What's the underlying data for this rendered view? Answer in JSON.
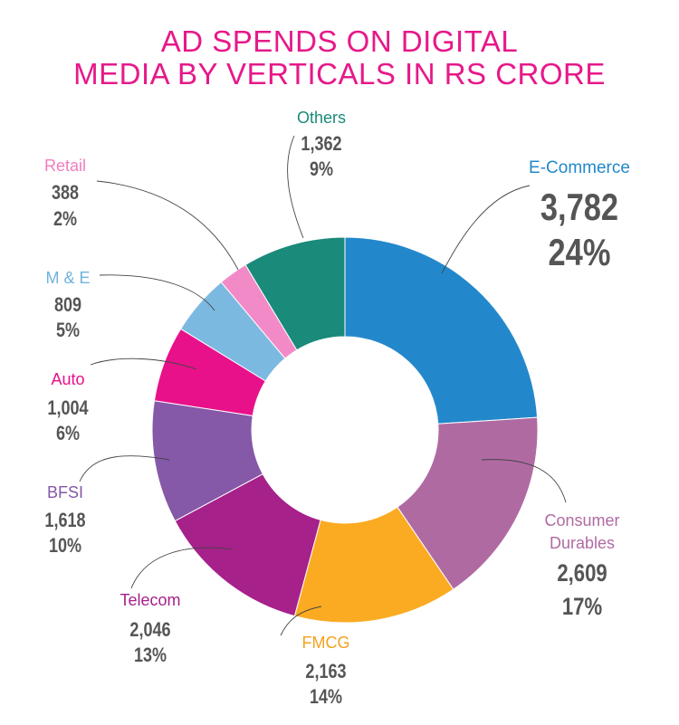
{
  "chart_data": {
    "type": "pie",
    "title_lines": [
      "AD SPENDS ON DIGITAL",
      "MEDIA BY VERTICALS IN RS CRORE"
    ],
    "donut": true,
    "start_angle_deg": 0,
    "direction": "clockwise",
    "segments": [
      {
        "name": "E-Commerce",
        "value": 3782,
        "value_text": "3,782",
        "pct": 24,
        "pct_text": "24%",
        "color": "#2388cb",
        "label_color": "#2388cb"
      },
      {
        "name": "Consumer Durables",
        "name_lines": [
          "Consumer",
          "Durables"
        ],
        "value": 2609,
        "value_text": "2,609",
        "pct": 17,
        "pct_text": "17%",
        "color": "#b06aa2",
        "label_color": "#b06aa2"
      },
      {
        "name": "FMCG",
        "value": 2163,
        "value_text": "2,163",
        "pct": 14,
        "pct_text": "14%",
        "color": "#fbab22",
        "label_color": "#f4a21d"
      },
      {
        "name": "Telecom",
        "value": 2046,
        "value_text": "2,046",
        "pct": 13,
        "pct_text": "13%",
        "color": "#a6218a",
        "label_color": "#a6218a"
      },
      {
        "name": "BFSI",
        "value": 1618,
        "value_text": "1,618",
        "pct": 10,
        "pct_text": "10%",
        "color": "#8558a8",
        "label_color": "#8558a8"
      },
      {
        "name": "Auto",
        "value": 1004,
        "value_text": "1,004",
        "pct": 6,
        "pct_text": "6%",
        "color": "#e8118a",
        "label_color": "#e8118a"
      },
      {
        "name": "M & E",
        "value": 809,
        "value_text": "809",
        "pct": 5,
        "pct_text": "5%",
        "color": "#7cb9e0",
        "label_color": "#6fb2de"
      },
      {
        "name": "Retail",
        "value": 388,
        "value_text": "388",
        "pct": 2,
        "pct_text": "2%",
        "color": "#f28ac8",
        "label_color": "#f07dc0"
      },
      {
        "name": "Others",
        "value": 1362,
        "value_text": "1,362",
        "pct": 9,
        "pct_text": "9%",
        "color": "#1a8a7a",
        "label_color": "#1a8a7a"
      }
    ],
    "number_color": "#555555"
  }
}
